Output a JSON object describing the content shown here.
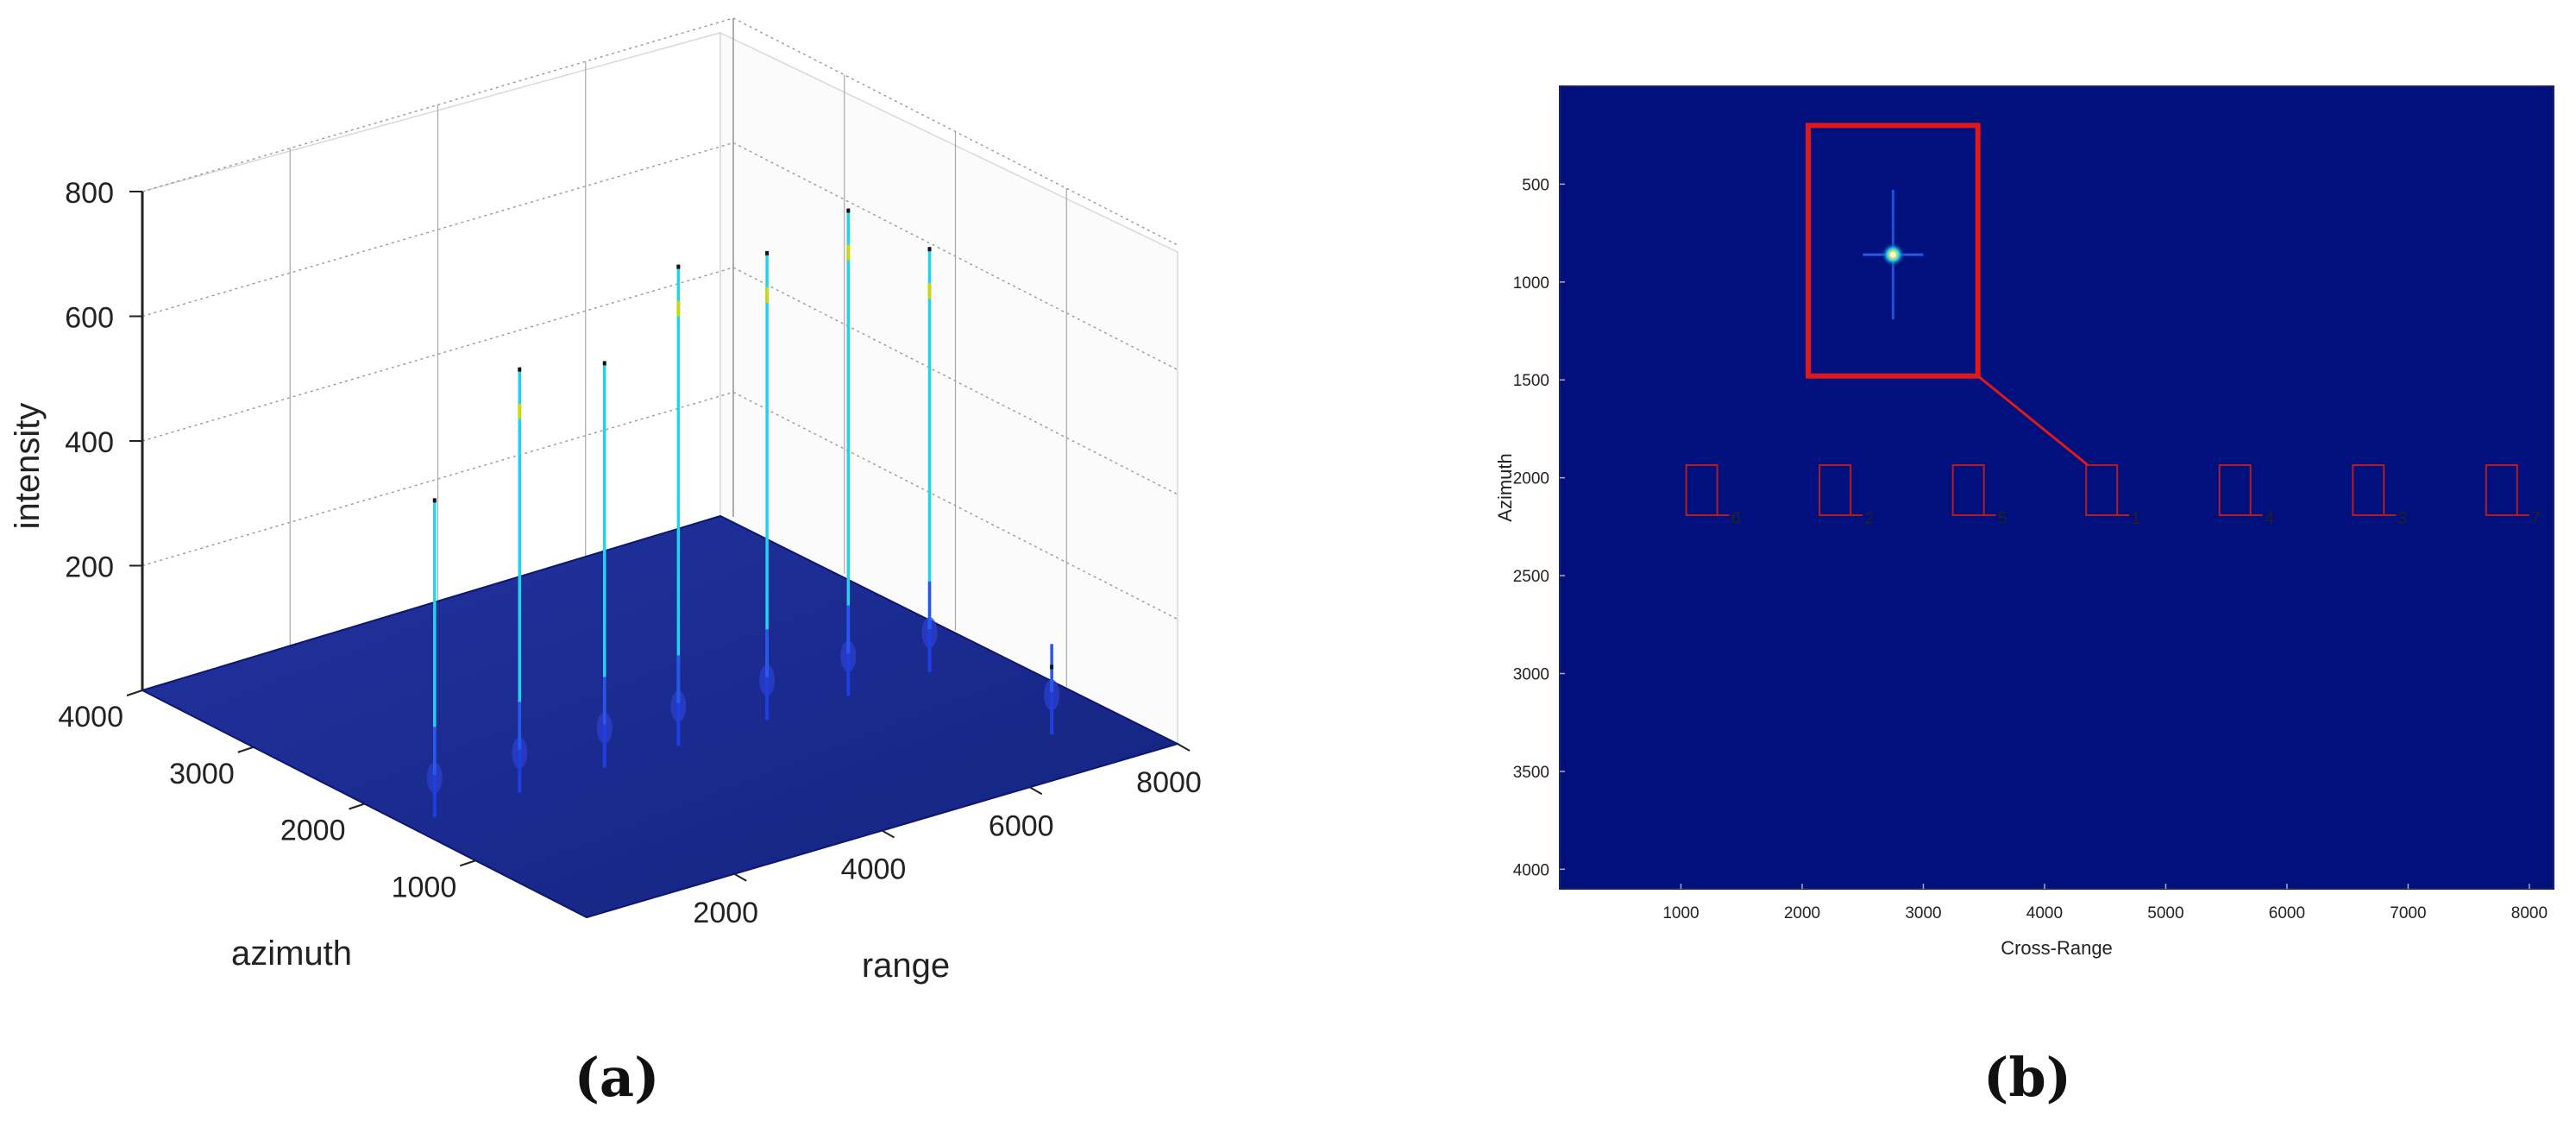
{
  "chart_data": [
    {
      "type": "surface3d",
      "panel_label": "(a)",
      "xlabel": "range",
      "ylabel": "azimuth",
      "zlabel": "intensity",
      "x_ticks": [
        "2000",
        "4000",
        "6000",
        "8000"
      ],
      "y_ticks": [
        "1000",
        "2000",
        "3000",
        "4000"
      ],
      "z_ticks": [
        "200",
        "400",
        "600",
        "800"
      ],
      "xlim": [
        0,
        8000
      ],
      "ylim": [
        0,
        4000
      ],
      "zlim": [
        0,
        800
      ],
      "grid": true,
      "colormap": "jet",
      "peaks": [
        {
          "x": 1100,
          "y": 2100,
          "z": 440
        },
        {
          "x": 2250,
          "y": 2100,
          "z": 610
        },
        {
          "x": 3400,
          "y": 2100,
          "z": 580
        },
        {
          "x": 4400,
          "y": 2100,
          "z": 700
        },
        {
          "x": 5600,
          "y": 2100,
          "z": 680
        },
        {
          "x": 6700,
          "y": 2100,
          "z": 710
        },
        {
          "x": 7800,
          "y": 2100,
          "z": 610
        },
        {
          "x": 7800,
          "y": 1000,
          "z": 40
        }
      ],
      "colors": {
        "floor": "#1b2a8f",
        "peak": "#22d3ee",
        "floor_edge": "#0d1670"
      }
    },
    {
      "type": "heatmap",
      "panel_label": "(b)",
      "xlabel": "Cross-Range",
      "ylabel": "Azimuth",
      "x_ticks": [
        "1000",
        "2000",
        "3000",
        "4000",
        "5000",
        "6000",
        "7000",
        "8000"
      ],
      "y_ticks": [
        "500",
        "1000",
        "1500",
        "2000",
        "2500",
        "3000",
        "3500",
        "4000"
      ],
      "xlim": [
        0,
        8200
      ],
      "ylim": [
        4100,
        0
      ],
      "background_color": "#02107e",
      "targets": [
        {
          "label": "6",
          "x": 1200,
          "y": 2050
        },
        {
          "label": "2",
          "x": 2300,
          "y": 2050
        },
        {
          "label": "5",
          "x": 3400,
          "y": 2050
        },
        {
          "label": "1",
          "x": 4500,
          "y": 2050
        },
        {
          "label": "4",
          "x": 5600,
          "y": 2050
        },
        {
          "label": "3",
          "x": 6700,
          "y": 2050
        },
        {
          "label": "7",
          "x": 7800,
          "y": 2050
        }
      ],
      "zoom_box": {
        "x0": 2050,
        "x1": 3450,
        "y0": 200,
        "y1": 1480,
        "source_target": "1"
      },
      "hotspot": {
        "x": 2750,
        "y": 860
      },
      "colors": {
        "target_box": "#b51d1d",
        "zoom_box": "#e01818"
      }
    }
  ]
}
